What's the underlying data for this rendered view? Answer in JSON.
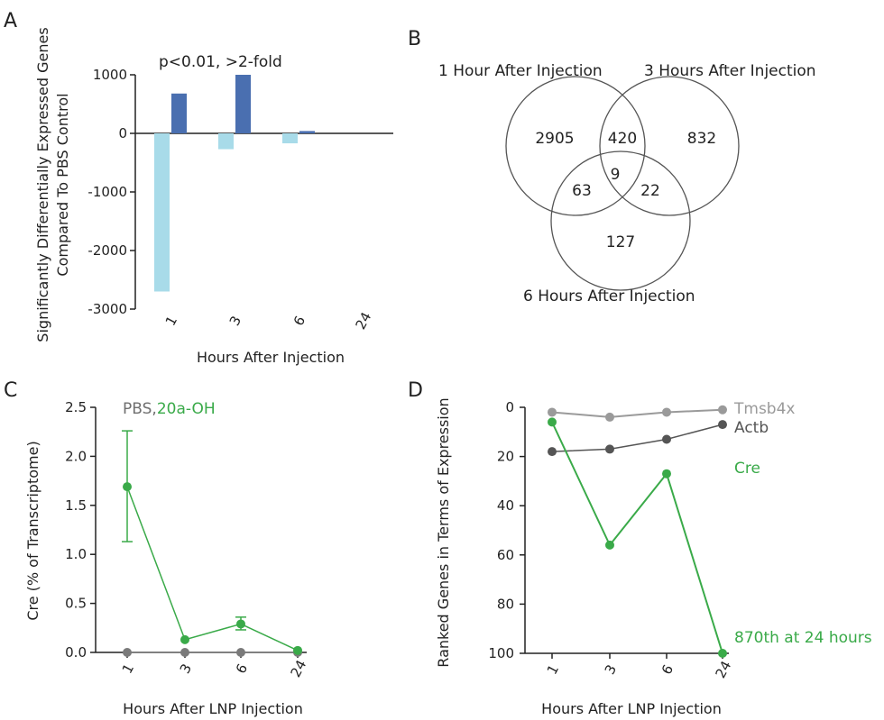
{
  "colors": {
    "light_blue": "#a8dbe9",
    "dark_blue": "#4a6fb0",
    "green": "#3aaa49",
    "gray": "#7a7a7a",
    "dark_gray": "#555555",
    "light_gray": "#9a9a9a"
  },
  "chart_data": [
    {
      "panel": "A",
      "type": "bar",
      "annotation": "p<0.01, >2-fold",
      "ylabel_line1": "Significantly Differentially Expressed Genes",
      "ylabel_line2": "Compared To PBS Control",
      "xlabel": "Hours After Injection",
      "categories": [
        "1",
        "3",
        "6",
        "24"
      ],
      "ylim": [
        -3000,
        1000
      ],
      "yticks": [
        "1000",
        "0",
        "-1000",
        "-2000",
        "-3000"
      ],
      "ytick_values": [
        1000,
        0,
        -1000,
        -2000,
        -3000
      ],
      "series": [
        {
          "role": "down",
          "values": [
            -2700,
            -270,
            -170,
            0
          ]
        },
        {
          "role": "up",
          "values": [
            680,
            1000,
            40,
            0
          ]
        }
      ]
    },
    {
      "panel": "B",
      "type": "venn",
      "sets": [
        "1 Hour After Injection",
        "3 Hours After Injection",
        "6 Hours After Injection"
      ],
      "regions": {
        "only_1": "2905",
        "only_3": "832",
        "only_6": "127",
        "one_three": "420",
        "one_six": "63",
        "three_six": "22",
        "all": "9"
      }
    },
    {
      "panel": "C",
      "type": "line",
      "legend_pbs": "PBS",
      "legend_sep": ",",
      "legend_20a": "20a-OH",
      "ylabel": "Cre (% of Transcriptome)",
      "xlabel": "Hours After LNP Injection",
      "categories": [
        "1",
        "3",
        "6",
        "24"
      ],
      "ylim": [
        0,
        2.5
      ],
      "yticks": [
        "0.0",
        "0.5",
        "1.0",
        "1.5",
        "2.0",
        "2.5"
      ],
      "ytick_values": [
        0,
        0.5,
        1.0,
        1.5,
        2.0,
        2.5
      ],
      "series": [
        {
          "name": "PBS",
          "values": [
            0,
            0,
            0,
            0
          ]
        },
        {
          "name": "20a-OH",
          "values": [
            1.69,
            0.13,
            0.29,
            0.02
          ],
          "err_low": [
            1.13,
            0.11,
            0.23,
            0.0
          ],
          "err_high": [
            2.26,
            0.15,
            0.36,
            0.04
          ]
        }
      ]
    },
    {
      "panel": "D",
      "type": "line",
      "ylabel": "Ranked Genes in Terms of Expression",
      "xlabel": "Hours After LNP Injection",
      "categories": [
        "1",
        "3",
        "6",
        "24"
      ],
      "ylim": [
        0,
        100
      ],
      "inverted": true,
      "yticks": [
        "0",
        "20",
        "40",
        "60",
        "80",
        "100"
      ],
      "ytick_values": [
        0,
        20,
        40,
        60,
        80,
        100
      ],
      "series": [
        {
          "name": "Tmsb4x",
          "values": [
            2,
            4,
            2,
            1
          ]
        },
        {
          "name": "Actb",
          "values": [
            18,
            17,
            13,
            7
          ]
        },
        {
          "name": "Cre",
          "values": [
            6,
            56,
            27,
            100
          ]
        }
      ],
      "annotation": "870th at 24 hours"
    }
  ]
}
